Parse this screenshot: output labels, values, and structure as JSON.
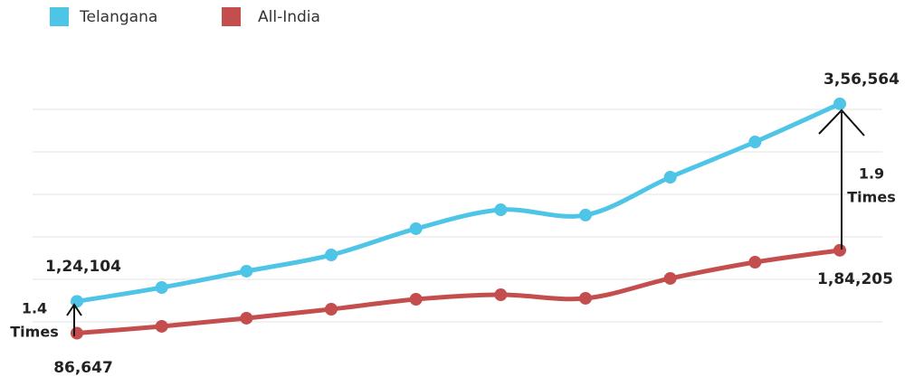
{
  "chart_data": {
    "type": "line",
    "categories": [
      null,
      null,
      null,
      null,
      null,
      null,
      null,
      null,
      null,
      null
    ],
    "series": [
      {
        "name": "Telangana",
        "color": "#4ec4e6",
        "values": [
          124104,
          140400,
          159600,
          178700,
          209600,
          231900,
          225600,
          270200,
          311700,
          356564
        ],
        "value_labels": [
          "1,24,104",
          null,
          null,
          null,
          null,
          null,
          null,
          null,
          null,
          "3,56,564"
        ]
      },
      {
        "name": "All-India",
        "color": "#c44d4d",
        "values": [
          86647,
          94700,
          104300,
          114900,
          126600,
          131900,
          127700,
          151100,
          170200,
          184205
        ],
        "value_labels": [
          "86,647",
          null,
          null,
          null,
          null,
          null,
          null,
          null,
          null,
          "1,84,205"
        ]
      }
    ],
    "annotations": [
      "1.4",
      "Times",
      "1.9",
      "Times"
    ],
    "ylim": [
      60000,
      370000
    ],
    "yticks": [
      100000,
      150000,
      200000,
      250000,
      300000,
      350000
    ],
    "grid": true
  }
}
